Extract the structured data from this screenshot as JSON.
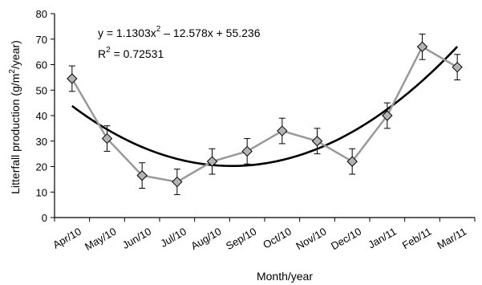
{
  "chart_data": {
    "type": "line",
    "xlabel": "Month/year",
    "ylabel": "Litterfall production (g/m2/year)",
    "ylabel_parts": {
      "before": "Litterfall production (g/m",
      "sup": "2",
      "after": "/year)"
    },
    "categories": [
      "Apr/10",
      "May/10",
      "Jun/10",
      "Jul/10",
      "Aug/10",
      "Sep/10",
      "Oct/10",
      "Nov/10",
      "Dec/10",
      "Jan/11",
      "Feb/11",
      "Mar/11"
    ],
    "ylim": [
      0,
      80
    ],
    "yticks": [
      0,
      10,
      20,
      30,
      40,
      50,
      60,
      70,
      80
    ],
    "series": [
      {
        "values": [
          54.5,
          31,
          16.5,
          14,
          22,
          26,
          34,
          30,
          22,
          40,
          67,
          59
        ],
        "errors": [
          5,
          5,
          5,
          5,
          5,
          5,
          5,
          5,
          5,
          5,
          5,
          5
        ],
        "color": "#999999",
        "marker": "diamond",
        "marker_fill": "#b3b3b3"
      }
    ],
    "trendline": {
      "type": "polynomial",
      "order": 2,
      "coefficients": {
        "a": 1.1303,
        "b": -12.578,
        "c": 55.236
      },
      "color": "#000000"
    },
    "annotations": {
      "equation": {
        "prefix": "y = 1.1303x",
        "sup": "2",
        "suffix": " – 12.578x + 55.236"
      },
      "r_squared": {
        "prefix": "R",
        "sup": "2",
        "suffix": " = 0.72531"
      }
    },
    "grid": false,
    "legend": "none"
  }
}
